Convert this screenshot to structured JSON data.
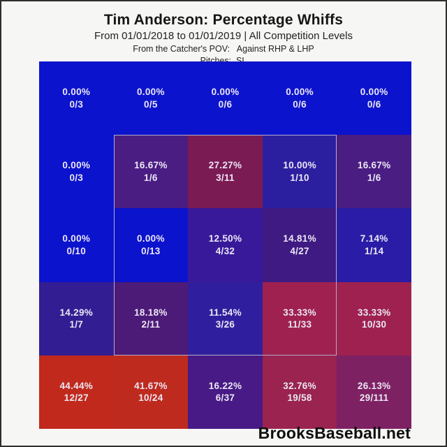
{
  "header": {
    "title": "Tim Anderson: Percentage Whiffs",
    "subtitle": "From 01/01/2018 to 01/01/2019 | All Competition Levels",
    "pov_line": "From the Catcher's POV:   Against RHP & LHP",
    "pitches_line": "Pitches:  SL"
  },
  "footer": {
    "brand": "BrooksBaseball.net"
  },
  "colors": {
    "page_background": "#f6f6f4",
    "frame_border": "#2e2e2e",
    "strike_zone_border": "#b3aec6",
    "cell_text": "#ece7f4",
    "low_value_blue": "#0b13cd",
    "high_value_red": "#c0291c"
  },
  "chart_data": {
    "type": "heatmap",
    "title": "Tim Anderson: Percentage Whiffs",
    "subtitle": "From 01/01/2018 to 01/01/2019 | All Competition Levels",
    "view": "From the Catcher's POV: Against RHP & LHP",
    "pitches": "SL",
    "legend_note": "color encodes whiff percentage, blue=0% to red=high",
    "grid": {
      "rows": 5,
      "cols": 5
    },
    "strike_zone": {
      "row_start": 2,
      "row_end": 4,
      "col_start": 2,
      "col_end": 4
    },
    "cells": [
      {
        "row": 1,
        "col": 1,
        "pct": "0.00%",
        "fraction": "0/3",
        "value": 0.0,
        "whiffs": 0,
        "swings": 3,
        "color": "#0b13cd"
      },
      {
        "row": 1,
        "col": 2,
        "pct": "0.00%",
        "fraction": "0/5",
        "value": 0.0,
        "whiffs": 0,
        "swings": 5,
        "color": "#0b13cd"
      },
      {
        "row": 1,
        "col": 3,
        "pct": "0.00%",
        "fraction": "0/6",
        "value": 0.0,
        "whiffs": 0,
        "swings": 6,
        "color": "#0b13cd"
      },
      {
        "row": 1,
        "col": 4,
        "pct": "0.00%",
        "fraction": "0/6",
        "value": 0.0,
        "whiffs": 0,
        "swings": 6,
        "color": "#0b13cd"
      },
      {
        "row": 1,
        "col": 5,
        "pct": "0.00%",
        "fraction": "0/6",
        "value": 0.0,
        "whiffs": 0,
        "swings": 6,
        "color": "#0b13cd"
      },
      {
        "row": 2,
        "col": 1,
        "pct": "0.00%",
        "fraction": "0/3",
        "value": 0.0,
        "whiffs": 0,
        "swings": 3,
        "color": "#0b13cd"
      },
      {
        "row": 2,
        "col": 2,
        "pct": "16.67%",
        "fraction": "1/6",
        "value": 16.67,
        "whiffs": 1,
        "swings": 6,
        "color": "#4a1d83"
      },
      {
        "row": 2,
        "col": 3,
        "pct": "27.27%",
        "fraction": "3/11",
        "value": 27.27,
        "whiffs": 3,
        "swings": 11,
        "color": "#7b1b54"
      },
      {
        "row": 2,
        "col": 4,
        "pct": "10.00%",
        "fraction": "1/10",
        "value": 10.0,
        "whiffs": 1,
        "swings": 10,
        "color": "#2c1f9f"
      },
      {
        "row": 2,
        "col": 5,
        "pct": "16.67%",
        "fraction": "1/6",
        "value": 16.67,
        "whiffs": 1,
        "swings": 6,
        "color": "#4a1d83"
      },
      {
        "row": 3,
        "col": 1,
        "pct": "0.00%",
        "fraction": "0/10",
        "value": 0.0,
        "whiffs": 0,
        "swings": 10,
        "color": "#0b13cd"
      },
      {
        "row": 3,
        "col": 2,
        "pct": "0.00%",
        "fraction": "0/13",
        "value": 0.0,
        "whiffs": 0,
        "swings": 13,
        "color": "#0b13cd"
      },
      {
        "row": 3,
        "col": 3,
        "pct": "12.50%",
        "fraction": "4/32",
        "value": 12.5,
        "whiffs": 4,
        "swings": 32,
        "color": "#37199a"
      },
      {
        "row": 3,
        "col": 4,
        "pct": "14.81%",
        "fraction": "4/27",
        "value": 14.81,
        "whiffs": 4,
        "swings": 27,
        "color": "#3f1a82"
      },
      {
        "row": 3,
        "col": 5,
        "pct": "7.14%",
        "fraction": "1/14",
        "value": 7.14,
        "whiffs": 1,
        "swings": 14,
        "color": "#2a1ca6"
      },
      {
        "row": 4,
        "col": 1,
        "pct": "14.29%",
        "fraction": "1/7",
        "value": 14.29,
        "whiffs": 1,
        "swings": 7,
        "color": "#321d92"
      },
      {
        "row": 4,
        "col": 2,
        "pct": "18.18%",
        "fraction": "2/11",
        "value": 18.18,
        "whiffs": 2,
        "swings": 11,
        "color": "#4c1a77"
      },
      {
        "row": 4,
        "col": 3,
        "pct": "11.54%",
        "fraction": "3/26",
        "value": 11.54,
        "whiffs": 3,
        "swings": 26,
        "color": "#2f1f9e"
      },
      {
        "row": 4,
        "col": 4,
        "pct": "33.33%",
        "fraction": "11/33",
        "value": 33.33,
        "whiffs": 11,
        "swings": 33,
        "color": "#9e2150"
      },
      {
        "row": 4,
        "col": 5,
        "pct": "33.33%",
        "fraction": "10/30",
        "value": 33.33,
        "whiffs": 10,
        "swings": 30,
        "color": "#9e2150"
      },
      {
        "row": 5,
        "col": 1,
        "pct": "44.44%",
        "fraction": "12/27",
        "value": 44.44,
        "whiffs": 12,
        "swings": 27,
        "color": "#c0291c"
      },
      {
        "row": 5,
        "col": 2,
        "pct": "41.67%",
        "fraction": "10/24",
        "value": 41.67,
        "whiffs": 10,
        "swings": 24,
        "color": "#bf2a1e"
      },
      {
        "row": 5,
        "col": 3,
        "pct": "16.22%",
        "fraction": "6/37",
        "value": 16.22,
        "whiffs": 6,
        "swings": 37,
        "color": "#471a86"
      },
      {
        "row": 5,
        "col": 4,
        "pct": "32.76%",
        "fraction": "19/58",
        "value": 32.76,
        "whiffs": 19,
        "swings": 58,
        "color": "#9a2350"
      },
      {
        "row": 5,
        "col": 5,
        "pct": "26.13%",
        "fraction": "29/111",
        "value": 26.13,
        "whiffs": 29,
        "swings": 111,
        "color": "#7e2163"
      }
    ]
  }
}
